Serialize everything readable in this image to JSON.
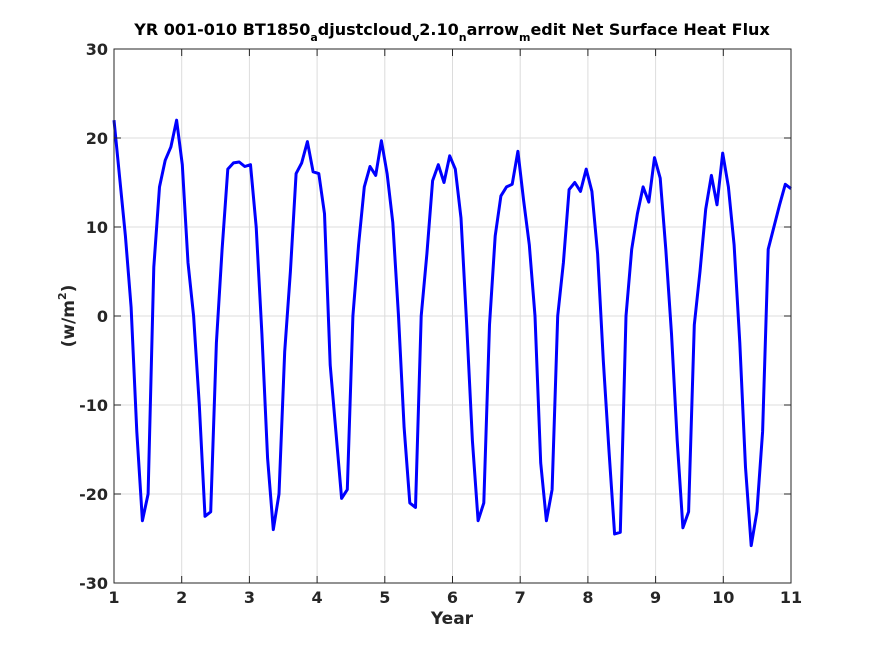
{
  "chart_data": {
    "type": "line",
    "title_parts": [
      {
        "text": "YR 001-010 BT1850",
        "pos": "normal"
      },
      {
        "text": "a",
        "pos": "sub"
      },
      {
        "text": "djustcloud",
        "pos": "normal"
      },
      {
        "text": "v",
        "pos": "sub"
      },
      {
        "text": "2.10",
        "pos": "normal"
      },
      {
        "text": "n",
        "pos": "sub"
      },
      {
        "text": "arrow",
        "pos": "normal"
      },
      {
        "text": "m",
        "pos": "sub"
      },
      {
        "text": "edit Net Surface Heat Flux",
        "pos": "normal"
      }
    ],
    "xlabel": "Year",
    "ylabel_main": "(w/m",
    "ylabel_sup": "2",
    "ylabel_end": ")",
    "xlim": [
      1,
      11
    ],
    "ylim": [
      -30,
      30
    ],
    "xticks": [
      1,
      2,
      3,
      4,
      5,
      6,
      7,
      8,
      9,
      10,
      11
    ],
    "yticks": [
      -30,
      -20,
      -10,
      0,
      10,
      20,
      30
    ],
    "grid": true,
    "line_color": "#0000ff",
    "series": [
      {
        "values": [
          22.0,
          15.5,
          9.0,
          1.0,
          -13.0,
          -23.0,
          -20.0,
          5.5,
          14.5,
          17.5,
          19.0,
          22.0,
          17.0,
          6.0,
          0.0,
          -10.0,
          -22.5,
          -22.0,
          -3.0,
          7.5,
          16.5,
          17.2,
          17.3,
          16.8,
          17.0,
          10.0,
          -2.0,
          -16.0,
          -24.0,
          -20.0,
          -4.0,
          5.0,
          16.0,
          17.2,
          19.6,
          16.2,
          16.0,
          11.5,
          -5.5,
          -13.0,
          -20.5,
          -19.5,
          0.0,
          8.0,
          14.5,
          16.8,
          15.8,
          19.7,
          16.0,
          10.5,
          0.0,
          -12.5,
          -21.0,
          -21.5,
          0.0,
          7.0,
          15.2,
          17.0,
          15.0,
          18.0,
          16.5,
          11.0,
          -1.0,
          -14.0,
          -23.0,
          -21.0,
          -1.0,
          9.0,
          13.5,
          14.5,
          14.8,
          18.5,
          13.0,
          8.0,
          0.0,
          -16.5,
          -23.0,
          -19.5,
          0.0,
          6.0,
          14.2,
          15.0,
          14.0,
          16.5,
          14.0,
          7.0,
          -5.0,
          -15.0,
          -24.5,
          -24.3,
          0.0,
          7.5,
          11.5,
          14.5,
          12.8,
          17.8,
          15.5,
          7.5,
          -2.0,
          -14.0,
          -23.8,
          -22.0,
          -1.0,
          5.0,
          12.0,
          15.8,
          12.5,
          18.3,
          14.5,
          8.0,
          -3.0,
          -17.0,
          -25.8,
          -22.0,
          -13.0,
          7.5,
          10.0,
          12.5,
          14.8,
          14.3
        ]
      }
    ]
  }
}
